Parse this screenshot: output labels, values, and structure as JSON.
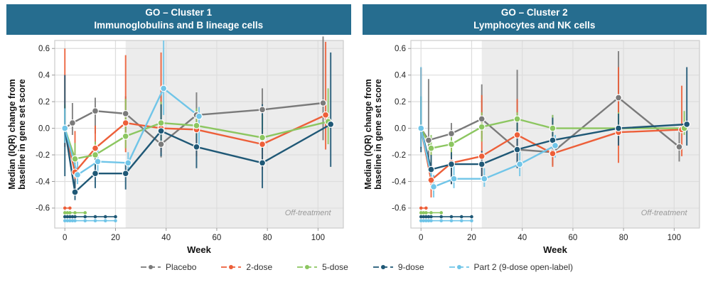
{
  "colors": {
    "strip_bg": "#266d8f",
    "placebo": "#7a7a7a",
    "dose2": "#ed5f39",
    "dose5": "#8cc660",
    "dose9": "#1f5876",
    "part2": "#70c5e8",
    "gridline": "#dddddd",
    "panel_border": "#cccccc",
    "off_region": "#ececec",
    "off_label": "#999999",
    "tick_text": "#222222"
  },
  "panels": [
    {
      "title_line1": "GO – Cluster 1",
      "title_line2": "Immunoglobulins and B lineage cells"
    },
    {
      "title_line1": "GO – Cluster 2",
      "title_line2": "Lymphocytes and NK cells"
    }
  ],
  "legend": {
    "items": [
      {
        "key": "placebo",
        "label": "Placebo"
      },
      {
        "key": "dose2",
        "label": "2-dose"
      },
      {
        "key": "dose5",
        "label": "5-dose"
      },
      {
        "key": "dose9",
        "label": "9-dose"
      },
      {
        "key": "part2",
        "label": "Part 2 (9-dose open-label)"
      }
    ]
  },
  "chart_data": [
    {
      "type": "line",
      "title": "GO – Cluster 1 / Immunoglobulins and B lineage cells",
      "xlabel": "Week",
      "ylabel_line1": "Median (IQR) change from",
      "ylabel_line2": "baseline in gene set score",
      "xlim": [
        -4,
        110
      ],
      "ylim": [
        -0.75,
        0.66
      ],
      "xticks": [
        0,
        20,
        40,
        60,
        80,
        100
      ],
      "yticks": [
        0.6,
        0.4,
        0.2,
        0.0,
        -0.2,
        -0.4,
        -0.6
      ],
      "grid": true,
      "legend_position": "bottom",
      "off_treatment": {
        "start_week": 24,
        "label": "Off-treatment",
        "label_week": 96,
        "label_value": -0.655
      },
      "series": [
        {
          "name": "Placebo",
          "color_key": "placebo",
          "x": [
            0,
            3,
            12,
            24,
            38,
            52,
            78,
            102
          ],
          "median": [
            0.0,
            0.04,
            0.13,
            0.11,
            -0.12,
            0.1,
            0.14,
            0.19
          ],
          "iqr_low": [
            -0.07,
            -0.05,
            -0.04,
            -0.05,
            -0.22,
            -0.02,
            0.02,
            -0.09
          ],
          "iqr_high": [
            0.17,
            0.19,
            0.23,
            0.24,
            0.31,
            0.27,
            0.3,
            0.69
          ]
        },
        {
          "name": "2-dose",
          "color_key": "dose2",
          "x": [
            0,
            4,
            12,
            24,
            38,
            52,
            78,
            103
          ],
          "median": [
            0.0,
            -0.33,
            -0.15,
            0.04,
            0.0,
            -0.01,
            -0.12,
            0.1
          ],
          "iqr_low": [
            -0.14,
            -0.5,
            -0.3,
            -0.18,
            -0.18,
            -0.21,
            -0.31,
            -0.16
          ],
          "iqr_high": [
            0.6,
            -0.02,
            0.02,
            0.55,
            0.57,
            0.12,
            0.1,
            0.65
          ]
        },
        {
          "name": "5-dose",
          "color_key": "dose5",
          "x": [
            0,
            4,
            12,
            24,
            38,
            52,
            78,
            104
          ],
          "median": [
            0.0,
            -0.23,
            -0.2,
            -0.06,
            0.04,
            0.02,
            -0.07,
            0.05
          ],
          "iqr_low": [
            -0.1,
            -0.33,
            -0.29,
            -0.15,
            -0.12,
            -0.08,
            -0.16,
            -0.12
          ],
          "iqr_high": [
            0.18,
            -0.11,
            -0.1,
            0.22,
            0.2,
            0.15,
            0.1,
            0.3
          ]
        },
        {
          "name": "9-dose",
          "color_key": "dose9",
          "x": [
            0,
            4,
            12,
            24,
            38,
            52,
            78,
            105
          ],
          "median": [
            0.0,
            -0.48,
            -0.34,
            -0.34,
            -0.02,
            -0.14,
            -0.26,
            0.03
          ],
          "iqr_low": [
            -0.36,
            -0.54,
            -0.45,
            -0.46,
            -0.21,
            -0.3,
            -0.45,
            -0.29
          ],
          "iqr_high": [
            0.4,
            -0.38,
            -0.22,
            -0.27,
            0.18,
            0.02,
            0.18,
            0.57
          ]
        },
        {
          "name": "Part 2 (9-dose open-label)",
          "color_key": "part2",
          "x": [
            0,
            5,
            13,
            25,
            39,
            53
          ],
          "median": [
            0.0,
            -0.35,
            -0.25,
            -0.26,
            0.3,
            0.09
          ],
          "iqr_low": [
            -0.11,
            -0.42,
            -0.34,
            -0.33,
            0.1,
            -0.15
          ],
          "iqr_high": [
            0.15,
            -0.25,
            -0.15,
            -0.18,
            0.66,
            0.16
          ]
        }
      ],
      "dosing_rows": [
        {
          "name": "2-dose",
          "color_key": "dose2",
          "weeks": [
            0,
            2
          ],
          "y": -0.6
        },
        {
          "name": "5-dose",
          "color_key": "dose5",
          "weeks": [
            0,
            1,
            2,
            4,
            8
          ],
          "y": -0.635
        },
        {
          "name": "9-dose",
          "color_key": "dose9",
          "weeks": [
            0,
            1,
            2,
            3,
            4,
            8,
            12,
            16,
            20
          ],
          "y": -0.665
        },
        {
          "name": "Part 2",
          "color_key": "part2",
          "weeks": [
            0,
            1,
            2,
            3,
            4,
            8,
            12,
            16,
            20
          ],
          "y": -0.695
        }
      ]
    },
    {
      "type": "line",
      "title": "GO – Cluster 2 / Lymphocytes and NK cells",
      "xlabel": "Week",
      "ylabel_line1": "Median (IQR) change from",
      "ylabel_line2": "baseline in gene set score",
      "xlim": [
        -4,
        110
      ],
      "ylim": [
        -0.75,
        0.66
      ],
      "xticks": [
        0,
        20,
        40,
        60,
        80,
        100
      ],
      "yticks": [
        0.6,
        0.4,
        0.2,
        0.0,
        -0.2,
        -0.4,
        -0.6
      ],
      "grid": true,
      "legend_position": "bottom",
      "off_treatment": {
        "start_week": 24,
        "label": "Off-treatment",
        "label_week": 96,
        "label_value": -0.655
      },
      "series": [
        {
          "name": "Placebo",
          "color_key": "placebo",
          "x": [
            0,
            3,
            12,
            24,
            38,
            52,
            78,
            102
          ],
          "median": [
            0.0,
            -0.09,
            -0.04,
            0.07,
            -0.16,
            -0.18,
            0.23,
            -0.14
          ],
          "iqr_low": [
            -0.13,
            -0.22,
            -0.15,
            -0.08,
            -0.28,
            -0.28,
            -0.09,
            -0.25
          ],
          "iqr_high": [
            0.46,
            0.37,
            0.04,
            0.33,
            0.44,
            0.1,
            0.58,
            -0.02
          ]
        },
        {
          "name": "2-dose",
          "color_key": "dose2",
          "x": [
            0,
            4,
            12,
            24,
            38,
            52,
            78,
            103
          ],
          "median": [
            0.0,
            -0.39,
            -0.26,
            -0.21,
            -0.05,
            -0.19,
            -0.03,
            -0.01
          ],
          "iqr_low": [
            -0.15,
            -0.52,
            -0.42,
            -0.36,
            -0.24,
            -0.29,
            -0.26,
            -0.21
          ],
          "iqr_high": [
            0.45,
            -0.18,
            -0.1,
            0.25,
            0.22,
            0.06,
            0.46,
            0.32
          ]
        },
        {
          "name": "5-dose",
          "color_key": "dose5",
          "x": [
            0,
            4,
            12,
            24,
            38,
            52,
            78,
            104
          ],
          "median": [
            0.0,
            -0.15,
            -0.12,
            0.01,
            0.07,
            0.0,
            0.0,
            0.0
          ],
          "iqr_low": [
            -0.1,
            -0.26,
            -0.21,
            -0.1,
            -0.04,
            -0.08,
            -0.06,
            -0.05
          ],
          "iqr_high": [
            0.24,
            -0.05,
            -0.02,
            0.12,
            0.12,
            0.1,
            0.12,
            0.13
          ]
        },
        {
          "name": "9-dose",
          "color_key": "dose9",
          "x": [
            0,
            4,
            12,
            24,
            38,
            52,
            78,
            105
          ],
          "median": [
            0.0,
            -0.31,
            -0.27,
            -0.27,
            -0.16,
            -0.09,
            0.0,
            0.03
          ],
          "iqr_low": [
            -0.18,
            -0.4,
            -0.42,
            -0.36,
            -0.3,
            -0.2,
            -0.13,
            -0.13
          ],
          "iqr_high": [
            0.24,
            -0.2,
            -0.18,
            -0.17,
            0.05,
            0.08,
            0.11,
            0.46
          ]
        },
        {
          "name": "Part 2 (9-dose open-label)",
          "color_key": "part2",
          "x": [
            0,
            5,
            13,
            25,
            39,
            53
          ],
          "median": [
            0.0,
            -0.44,
            -0.38,
            -0.38,
            -0.27,
            -0.13
          ],
          "iqr_low": [
            -0.14,
            -0.52,
            -0.45,
            -0.44,
            -0.36,
            -0.22
          ],
          "iqr_high": [
            0.46,
            -0.35,
            -0.28,
            -0.3,
            -0.16,
            -0.05
          ]
        }
      ],
      "dosing_rows": [
        {
          "name": "2-dose",
          "color_key": "dose2",
          "weeks": [
            0,
            2
          ],
          "y": -0.6
        },
        {
          "name": "5-dose",
          "color_key": "dose5",
          "weeks": [
            0,
            1,
            2,
            4,
            8
          ],
          "y": -0.635
        },
        {
          "name": "9-dose",
          "color_key": "dose9",
          "weeks": [
            0,
            1,
            2,
            3,
            4,
            8,
            12,
            16,
            20
          ],
          "y": -0.665
        },
        {
          "name": "Part 2",
          "color_key": "part2",
          "weeks": [
            0,
            1,
            2,
            3,
            4,
            8,
            12,
            16,
            20
          ],
          "y": -0.695
        }
      ]
    }
  ]
}
